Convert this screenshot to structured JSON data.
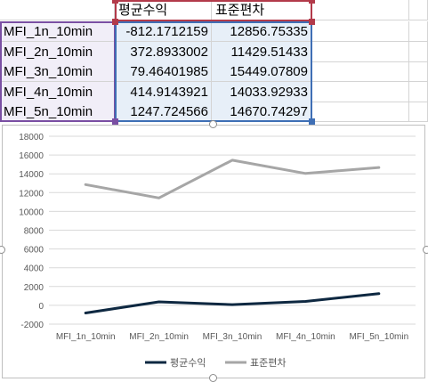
{
  "sheet": {
    "headers": [
      "",
      "평균수익",
      "표준편차"
    ],
    "rows": [
      {
        "name": "MFI_1n_10min",
        "mean": "-812.1712159",
        "std": "12856.75335"
      },
      {
        "name": "MFI_2n_10min",
        "mean": "372.8933002",
        "std": "11429.51433"
      },
      {
        "name": "MFI_3n_10min",
        "mean": "79.46401985",
        "std": "15449.07809"
      },
      {
        "name": "MFI_4n_10min",
        "mean": "414.9143921",
        "std": "14033.92933"
      },
      {
        "name": "MFI_5n_10min",
        "mean": "1247.724566",
        "std": "14670.74297"
      }
    ]
  },
  "colors": {
    "series_mean": "#0e2841",
    "series_std": "#a6a6a6",
    "gridline": "#d9d9d9",
    "axis_text": "#595959",
    "range_label": "#7a4fa3",
    "range_series": "#b23a4a",
    "range_values": "#3f6fb5"
  },
  "chart_data": {
    "type": "line",
    "categories": [
      "MFI_1n_10min",
      "MFI_2n_10min",
      "MFI_3n_10min",
      "MFI_4n_10min",
      "MFI_5n_10min"
    ],
    "series": [
      {
        "name": "평균수익",
        "values": [
          -812.1712159,
          372.8933002,
          79.46401985,
          414.9143921,
          1247.724566
        ]
      },
      {
        "name": "표준편차",
        "values": [
          12856.75335,
          11429.51433,
          15449.07809,
          14033.92933,
          14670.74297
        ]
      }
    ],
    "ylim": [
      -2000,
      18000
    ],
    "yticks": [
      18000,
      16000,
      14000,
      12000,
      10000,
      8000,
      6000,
      4000,
      2000,
      0,
      -2000
    ],
    "grid": true,
    "legend": "bottom"
  }
}
